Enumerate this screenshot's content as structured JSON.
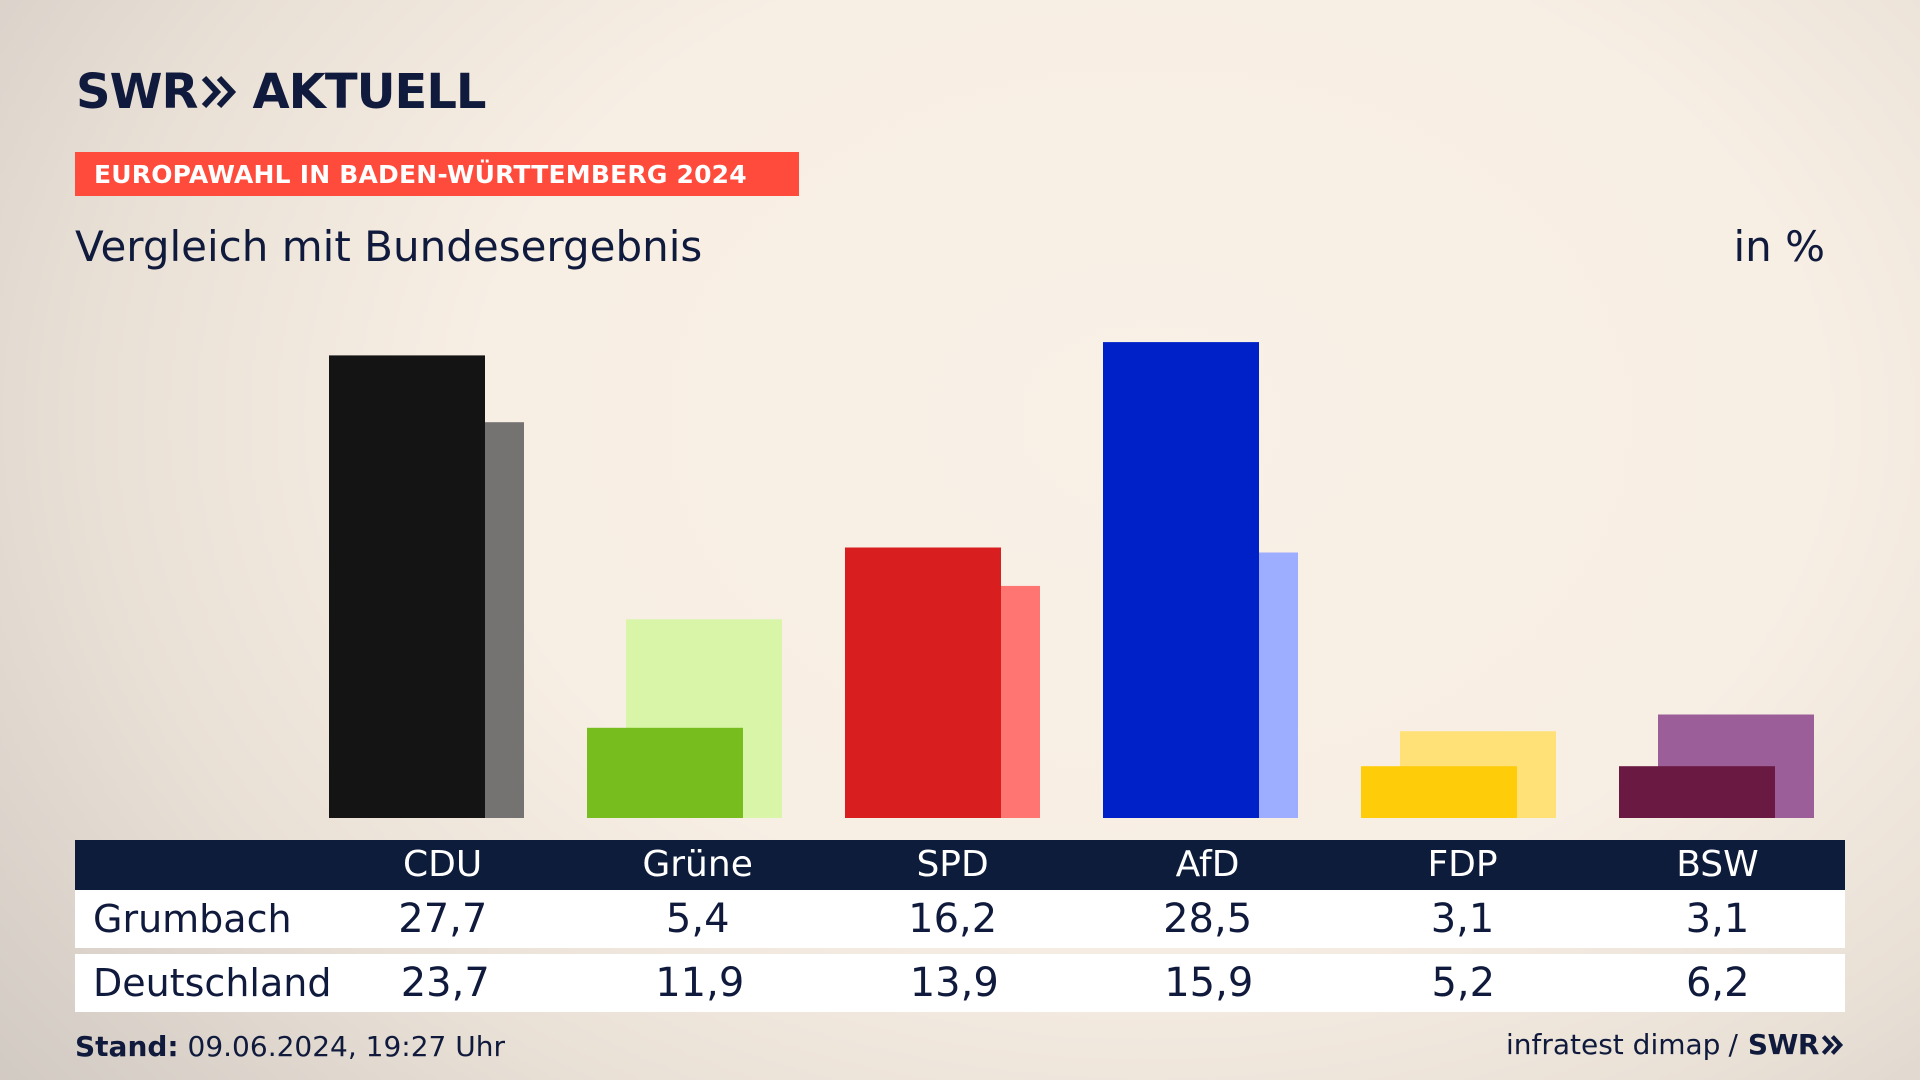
{
  "brand": {
    "logo_left": "SWR",
    "logo_right": "AKTUELL",
    "footer_logo": "SWR"
  },
  "headline": "EUROPAWAHL IN BADEN-WÜRTTEMBERG 2024",
  "subtitle": "Vergleich mit Bundesergebnis",
  "unit": "in %",
  "footer": {
    "stand_label": "Stand:",
    "stand_value": "09.06.2024, 19:27 Uhr",
    "source": "infratest dimap",
    "separator": "/"
  },
  "colors": {
    "background": "#f7eee4",
    "headline_bar": "#ff4b3c",
    "table_header": "#0d1c3a",
    "text": "#101a3c"
  },
  "chart_data": {
    "type": "bar",
    "categories": [
      "CDU",
      "Grüne",
      "SPD",
      "AfD",
      "FDP",
      "BSW"
    ],
    "series": [
      {
        "name": "Grumbach",
        "values": [
          27.7,
          5.4,
          16.2,
          28.5,
          3.1,
          3.1
        ],
        "colors": [
          "#141414",
          "#78bd1e",
          "#d81e1e",
          "#0021c8",
          "#ffcc0a",
          "#6a1942"
        ]
      },
      {
        "name": "Deutschland",
        "values": [
          23.7,
          11.9,
          13.9,
          15.9,
          5.2,
          6.2
        ],
        "colors": [
          "#747372",
          "#d8f5a8",
          "#ff7572",
          "#9dadff",
          "#ffe177",
          "#9c5e98"
        ]
      }
    ],
    "ylim": [
      0,
      30
    ]
  },
  "table": {
    "rows": [
      {
        "label": "Grumbach",
        "values": [
          "27,7",
          "5,4",
          "16,2",
          "28,5",
          "3,1",
          "3,1"
        ]
      },
      {
        "label": "Deutschland",
        "values": [
          "23,7",
          "11,9",
          "13,9",
          "15,9",
          "5,2",
          "6,2"
        ]
      }
    ]
  }
}
